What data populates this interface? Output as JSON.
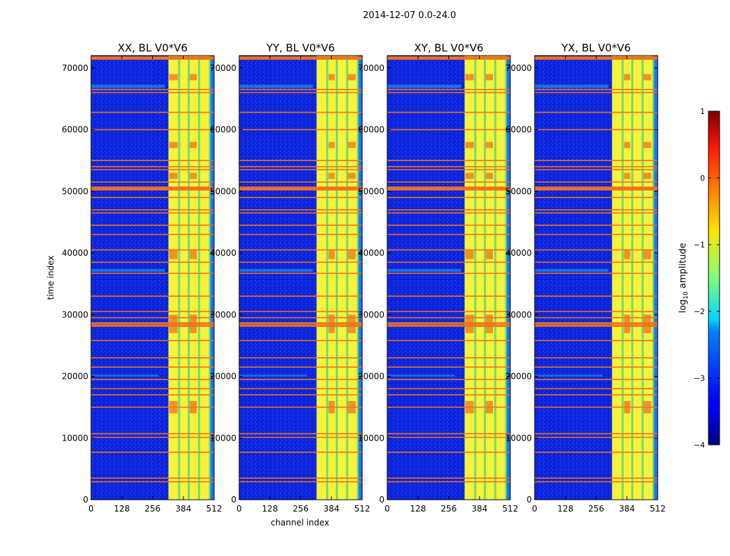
{
  "suptitle": "2014-12-07 0.0-24.0",
  "colors": {
    "background": "#ffffff",
    "low": "#0a1fd6",
    "cyan_band": "#2aa7ee",
    "yellow_band": "#f7f33a",
    "green_line": "#59d77a",
    "rfi_orange": "#f2711c",
    "red_hot": "#e8321a"
  },
  "chart_data": [
    {
      "type": "heatmap",
      "title": "XX, BL V0*V6",
      "xlabel": "",
      "ylabel": "time index",
      "xticks": [
        "0",
        "128",
        "256",
        "384",
        "512"
      ],
      "yticks": [
        "0",
        "10000",
        "20000",
        "30000",
        "40000",
        "50000",
        "60000",
        "70000"
      ],
      "xlim": [
        0,
        512
      ],
      "ylim": [
        0,
        72000
      ]
    },
    {
      "type": "heatmap",
      "title": "YY, BL V0*V6",
      "xlabel": "channel index",
      "ylabel": "",
      "xticks": [
        "0",
        "128",
        "256",
        "384",
        "512"
      ],
      "yticks": [
        "0",
        "10000",
        "20000",
        "30000",
        "40000",
        "50000",
        "60000",
        "70000"
      ],
      "xlim": [
        0,
        512
      ],
      "ylim": [
        0,
        72000
      ]
    },
    {
      "type": "heatmap",
      "title": "XY, BL V0*V6",
      "xlabel": "",
      "ylabel": "",
      "xticks": [
        "0",
        "128",
        "256",
        "384",
        "512"
      ],
      "yticks": [
        "0",
        "10000",
        "20000",
        "30000",
        "40000",
        "50000",
        "60000",
        "70000"
      ],
      "xlim": [
        0,
        512
      ],
      "ylim": [
        0,
        72000
      ]
    },
    {
      "type": "heatmap",
      "title": "YX, BL V0*V6",
      "xlabel": "",
      "ylabel": "",
      "xticks": [
        "0",
        "128",
        "256",
        "384",
        "512"
      ],
      "yticks": [
        "0",
        "10000",
        "20000",
        "30000",
        "40000",
        "50000",
        "60000",
        "70000"
      ],
      "xlim": [
        0,
        512
      ],
      "ylim": [
        0,
        72000
      ]
    }
  ],
  "rfi_rows": [
    2900,
    3500,
    7700,
    10100,
    10700,
    15000,
    17000,
    18000,
    19500,
    21500,
    23000,
    25800,
    28200,
    28600,
    29500,
    30500,
    33000,
    36700,
    38500,
    40500,
    43000,
    44500,
    46500,
    47000,
    49000,
    50300,
    50600,
    51500,
    53500,
    54000,
    55000,
    60000,
    62800,
    66000,
    66500,
    71500,
    71700
  ],
  "hot_band_channels": [
    [
      325,
      360
    ],
    [
      372,
      398
    ],
    [
      410,
      440
    ],
    [
      452,
      485
    ]
  ],
  "colorbar": {
    "label_main": "log",
    "label_sub": "10",
    "label_rest": " amplitude",
    "ticks": [
      "1",
      "0",
      "−1",
      "−2",
      "−3",
      "−4"
    ],
    "range": [
      -4,
      1
    ]
  }
}
